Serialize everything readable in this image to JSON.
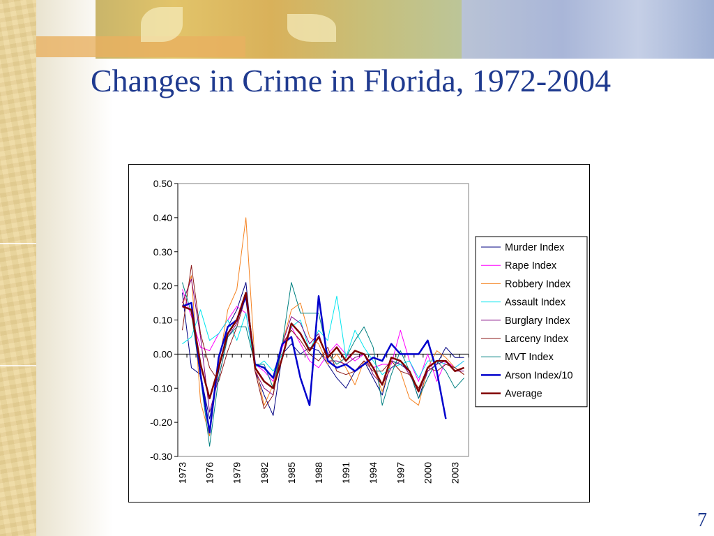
{
  "slide": {
    "title": "Changes in Crime in Florida, 1972-2004",
    "page_number": "7"
  },
  "colors": {
    "title": "#1f3a8f",
    "Murder Index": "#000080",
    "Rape Index": "#ff00ff",
    "Robbery Index": "#f58220",
    "Assault Index": "#00e5ee",
    "Burglary Index": "#800080",
    "Larceny Index": "#8b1a1a",
    "MVT Index": "#008080",
    "Arson Index/10": "#0000cc",
    "Average": "#800000"
  },
  "chart_data": {
    "type": "line",
    "title": "",
    "xlabel": "",
    "ylabel": "",
    "ylim": [
      -0.3,
      0.5
    ],
    "yticks": [
      "0.50",
      "0.40",
      "0.30",
      "0.20",
      "0.10",
      "0.00",
      "-0.10",
      "-0.20",
      "-0.30"
    ],
    "x_tick_labels": [
      "1973",
      "1976",
      "1979",
      "1982",
      "1985",
      "1988",
      "1991",
      "1994",
      "1997",
      "2000",
      "2003"
    ],
    "legend_position": "right",
    "x": [
      1973,
      1974,
      1975,
      1976,
      1977,
      1978,
      1979,
      1980,
      1981,
      1982,
      1983,
      1984,
      1985,
      1986,
      1987,
      1988,
      1989,
      1990,
      1991,
      1992,
      1993,
      1994,
      1995,
      1996,
      1997,
      1998,
      1999,
      2000,
      2001,
      2002,
      2003,
      2004
    ],
    "series": [
      {
        "name": "Murder Index",
        "values": [
          0.18,
          -0.04,
          -0.06,
          -0.19,
          -0.05,
          0.08,
          0.13,
          0.21,
          -0.05,
          -0.12,
          -0.18,
          0.0,
          0.03,
          0.0,
          0.02,
          0.01,
          -0.03,
          -0.07,
          -0.1,
          -0.05,
          -0.02,
          -0.07,
          -0.12,
          -0.02,
          -0.03,
          -0.05,
          -0.13,
          -0.05,
          -0.03,
          0.02,
          -0.01,
          -0.01
        ]
      },
      {
        "name": "Rape Index",
        "values": [
          0.19,
          0.11,
          0.02,
          0.01,
          0.06,
          0.1,
          0.14,
          0.12,
          -0.03,
          -0.05,
          -0.08,
          0.02,
          0.08,
          0.03,
          -0.02,
          -0.04,
          0.0,
          0.03,
          0.0,
          -0.02,
          0.0,
          -0.04,
          -0.03,
          -0.03,
          0.07,
          -0.02,
          -0.08,
          0.0,
          -0.08,
          -0.02,
          -0.04,
          -0.02
        ]
      },
      {
        "name": "Robbery Index",
        "values": [
          0.14,
          0.23,
          -0.14,
          -0.24,
          -0.03,
          0.13,
          0.19,
          0.4,
          -0.03,
          -0.15,
          -0.09,
          0.03,
          0.13,
          0.15,
          0.05,
          0.03,
          -0.03,
          0.0,
          -0.04,
          -0.09,
          -0.02,
          -0.04,
          -0.11,
          -0.02,
          -0.05,
          -0.13,
          -0.15,
          -0.04,
          0.01,
          -0.01,
          -0.04,
          -0.06
        ]
      },
      {
        "name": "Assault Index",
        "values": [
          0.03,
          0.05,
          0.13,
          0.04,
          0.06,
          0.1,
          0.04,
          0.12,
          -0.04,
          -0.02,
          -0.05,
          0.0,
          0.08,
          0.1,
          0.01,
          0.07,
          0.04,
          0.17,
          -0.01,
          0.07,
          0.02,
          -0.02,
          -0.06,
          -0.04,
          -0.03,
          -0.02,
          -0.07,
          -0.02,
          -0.02,
          -0.03,
          -0.04,
          -0.02
        ]
      },
      {
        "name": "Burglary Index",
        "values": [
          0.15,
          0.22,
          0.05,
          -0.17,
          -0.07,
          0.05,
          0.09,
          0.18,
          -0.05,
          -0.1,
          -0.12,
          0.03,
          0.11,
          0.09,
          0.03,
          0.06,
          -0.02,
          -0.02,
          -0.03,
          -0.01,
          0.0,
          -0.06,
          -0.09,
          -0.04,
          -0.02,
          -0.06,
          -0.11,
          -0.05,
          -0.03,
          -0.02,
          -0.05,
          -0.05
        ]
      },
      {
        "name": "Larceny Index",
        "values": [
          0.07,
          0.26,
          0.06,
          -0.04,
          -0.08,
          0.01,
          0.08,
          0.17,
          -0.05,
          -0.16,
          -0.12,
          0.03,
          0.07,
          0.04,
          0.0,
          -0.02,
          0.02,
          -0.05,
          -0.06,
          -0.05,
          -0.02,
          -0.05,
          -0.05,
          -0.02,
          -0.05,
          -0.06,
          -0.1,
          -0.04,
          -0.05,
          -0.03,
          -0.04,
          -0.06
        ]
      },
      {
        "name": "MVT Index",
        "values": [
          0.21,
          0.12,
          -0.07,
          -0.27,
          -0.07,
          0.05,
          0.08,
          0.08,
          -0.03,
          -0.03,
          -0.1,
          0.03,
          0.21,
          0.12,
          0.12,
          0.12,
          0.0,
          -0.03,
          -0.01,
          0.04,
          0.08,
          0.02,
          -0.15,
          -0.06,
          0.01,
          -0.05,
          -0.13,
          -0.07,
          -0.02,
          -0.05,
          -0.1,
          -0.07
        ]
      },
      {
        "name": "Arson Index/10",
        "values": [
          0.14,
          0.15,
          -0.06,
          -0.23,
          -0.01,
          0.08,
          0.1,
          0.17,
          -0.03,
          -0.04,
          -0.07,
          0.03,
          0.05,
          -0.07,
          -0.15,
          0.17,
          -0.02,
          -0.04,
          -0.03,
          -0.05,
          -0.03,
          -0.01,
          -0.02,
          0.03,
          0.0,
          0.0,
          0.0,
          0.04,
          -0.05,
          -0.19,
          null,
          null
        ]
      },
      {
        "name": "Average",
        "values": [
          0.14,
          0.13,
          -0.03,
          -0.13,
          -0.04,
          0.06,
          0.1,
          0.18,
          -0.04,
          -0.08,
          -0.1,
          -0.01,
          0.09,
          0.06,
          0.01,
          0.05,
          -0.01,
          0.02,
          -0.02,
          0.01,
          0.0,
          -0.04,
          -0.09,
          -0.01,
          -0.02,
          -0.05,
          -0.11,
          -0.04,
          -0.02,
          -0.02,
          -0.05,
          -0.04
        ]
      }
    ]
  }
}
